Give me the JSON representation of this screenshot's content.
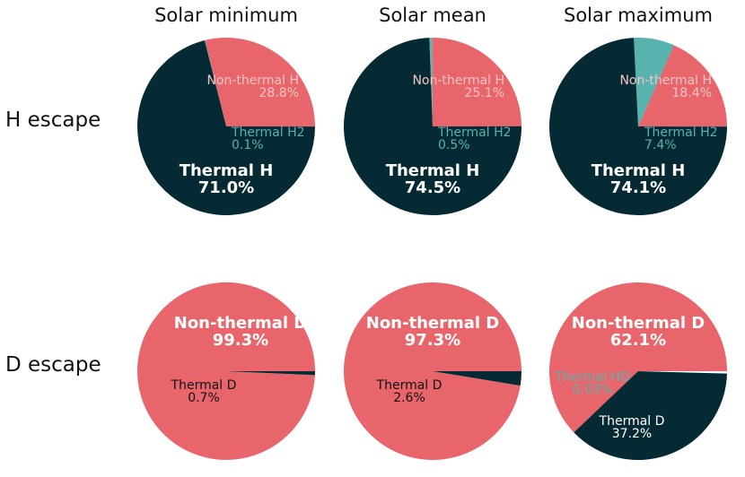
{
  "chart_data": {
    "type": "pie",
    "columns": [
      "Solar minimum",
      "Solar mean",
      "Solar maximum"
    ],
    "rows": [
      "H escape",
      "D escape"
    ],
    "colors": {
      "dark": "#052a33",
      "coral": "#e8666b",
      "teal": "#58b2ae"
    },
    "panels": [
      {
        "row": "H escape",
        "column": "Solar minimum",
        "slices": [
          {
            "label": "Non-thermal H",
            "pct_text": "28.8%",
            "value": 28.8,
            "color": "coral"
          },
          {
            "label": "Thermal H2",
            "pct_text": "0.1%",
            "value": 0.1,
            "color": "teal"
          },
          {
            "label": "Thermal H",
            "pct_text": "71.0%",
            "value": 71.0,
            "color": "dark"
          }
        ]
      },
      {
        "row": "H escape",
        "column": "Solar mean",
        "slices": [
          {
            "label": "Non-thermal H",
            "pct_text": "25.1%",
            "value": 25.1,
            "color": "coral"
          },
          {
            "label": "Thermal H2",
            "pct_text": "0.5%",
            "value": 0.5,
            "color": "teal"
          },
          {
            "label": "Thermal H",
            "pct_text": "74.5%",
            "value": 74.5,
            "color": "dark"
          }
        ]
      },
      {
        "row": "H escape",
        "column": "Solar maximum",
        "slices": [
          {
            "label": "Non-thermal H",
            "pct_text": "18.4%",
            "value": 18.4,
            "color": "coral"
          },
          {
            "label": "Thermal H2",
            "pct_text": "7.4%",
            "value": 7.4,
            "color": "teal"
          },
          {
            "label": "Thermal H",
            "pct_text": "74.1%",
            "value": 74.1,
            "color": "dark"
          }
        ]
      },
      {
        "row": "D escape",
        "column": "Solar minimum",
        "slices": [
          {
            "label": "Non-thermal D",
            "pct_text": "99.3%",
            "value": 99.3,
            "color": "coral"
          },
          {
            "label": "Thermal D",
            "pct_text": "0.7%",
            "value": 0.7,
            "color": "dark"
          }
        ]
      },
      {
        "row": "D escape",
        "column": "Solar mean",
        "slices": [
          {
            "label": "Non-thermal D",
            "pct_text": "97.3%",
            "value": 97.3,
            "color": "coral"
          },
          {
            "label": "Thermal D",
            "pct_text": "2.6%",
            "value": 2.6,
            "color": "dark"
          }
        ]
      },
      {
        "row": "D escape",
        "column": "Solar maximum",
        "slices": [
          {
            "label": "Non-thermal D",
            "pct_text": "62.1%",
            "value": 62.1,
            "color": "coral"
          },
          {
            "label": "Thermal HD",
            "pct_text": "0.03%",
            "value": 0.03,
            "color": "teal"
          },
          {
            "label": "Thermal D",
            "pct_text": "37.2%",
            "value": 37.2,
            "color": "dark"
          }
        ]
      }
    ]
  }
}
